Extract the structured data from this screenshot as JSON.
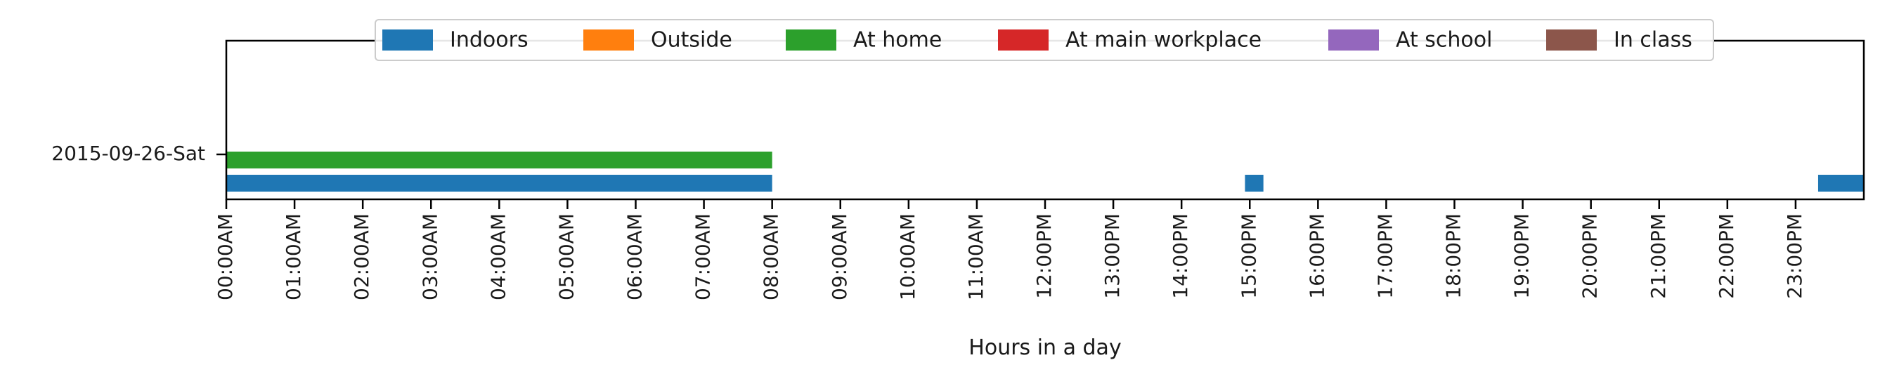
{
  "chart_data": {
    "type": "bar",
    "orientation": "horizontal",
    "xlabel": "Hours in a day",
    "ylabel": "",
    "xlim": [
      0,
      24
    ],
    "grid": false,
    "legend_position": "top-center",
    "y_tick_labels": [
      "2015-09-26-Sat"
    ],
    "x_tick_labels": [
      "00:00AM",
      "01:00AM",
      "02:00AM",
      "03:00AM",
      "04:00AM",
      "05:00AM",
      "06:00AM",
      "07:00AM",
      "08:00AM",
      "09:00AM",
      "10:00AM",
      "11:00AM",
      "12:00PM",
      "13:00PM",
      "14:00PM",
      "15:00PM",
      "16:00PM",
      "17:00PM",
      "18:00PM",
      "19:00PM",
      "20:00PM",
      "21:00PM",
      "22:00PM",
      "23:00PM"
    ],
    "series": [
      {
        "name": "Indoors",
        "color": "#1f77b4",
        "date": "2015-09-26-Sat",
        "intervals": [
          [
            0,
            8
          ],
          [
            14.93,
            15.2
          ],
          [
            23.33,
            24
          ]
        ]
      },
      {
        "name": "Outside",
        "color": "#ff7f0e",
        "date": "2015-09-26-Sat",
        "intervals": []
      },
      {
        "name": "At home",
        "color": "#2ca02c",
        "date": "2015-09-26-Sat",
        "intervals": [
          [
            0,
            8
          ]
        ]
      },
      {
        "name": "At main workplace",
        "color": "#d62728",
        "date": "2015-09-26-Sat",
        "intervals": []
      },
      {
        "name": "At school",
        "color": "#9467bd",
        "date": "2015-09-26-Sat",
        "intervals": []
      },
      {
        "name": "In class",
        "color": "#8c564b",
        "date": "2015-09-26-Sat",
        "intervals": []
      }
    ]
  }
}
